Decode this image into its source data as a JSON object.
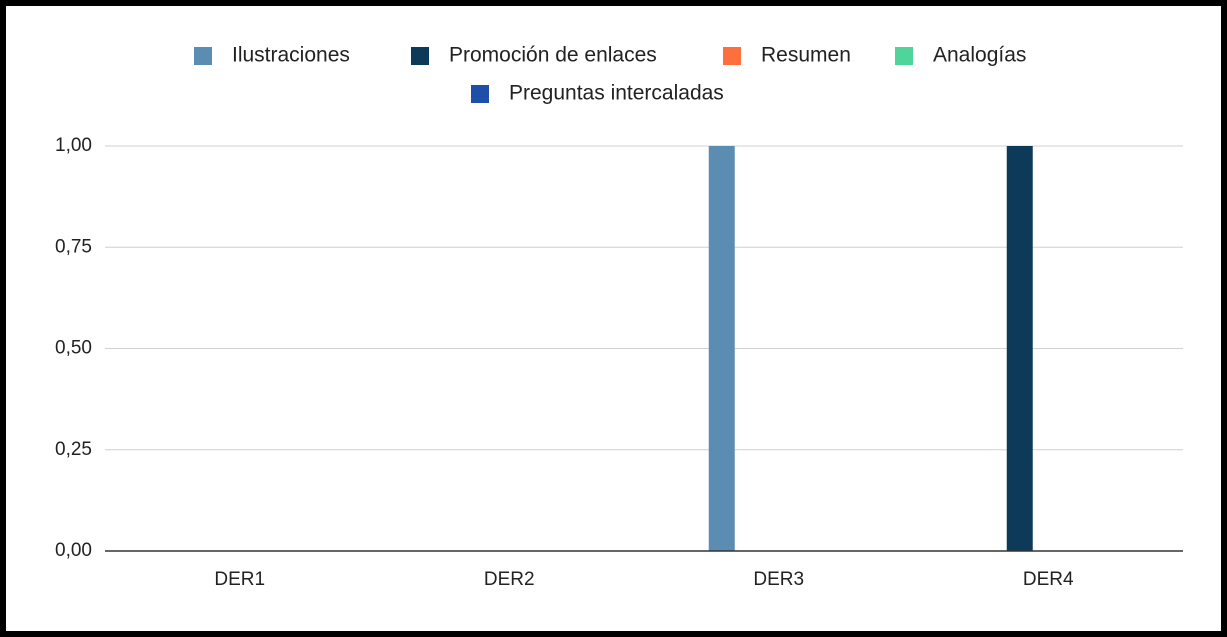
{
  "chart_data": {
    "type": "bar",
    "categories": [
      "DER1",
      "DER2",
      "DER3",
      "DER4"
    ],
    "series": [
      {
        "name": "Ilustraciones",
        "color": "#5b8db3",
        "values": [
          0,
          0,
          1,
          0
        ]
      },
      {
        "name": "Promoción de enlaces",
        "color": "#0e3a5a",
        "values": [
          0,
          0,
          0,
          1
        ]
      },
      {
        "name": "Resumen",
        "color": "#ff6f3d",
        "values": [
          0,
          0,
          0,
          0
        ]
      },
      {
        "name": "Analogías",
        "color": "#4fd49c",
        "values": [
          0,
          0,
          0,
          0
        ]
      },
      {
        "name": "Preguntas intercaladas",
        "color": "#1d4ea8",
        "values": [
          0,
          0,
          0,
          0
        ]
      }
    ],
    "ylim": [
      0,
      1
    ],
    "yticks": [
      {
        "value": 0,
        "label": "0,00"
      },
      {
        "value": 0.25,
        "label": "0,25"
      },
      {
        "value": 0.5,
        "label": "0,50"
      },
      {
        "value": 0.75,
        "label": "0,75"
      },
      {
        "value": 1,
        "label": "1,00"
      }
    ],
    "grid": true,
    "legend": "top"
  }
}
